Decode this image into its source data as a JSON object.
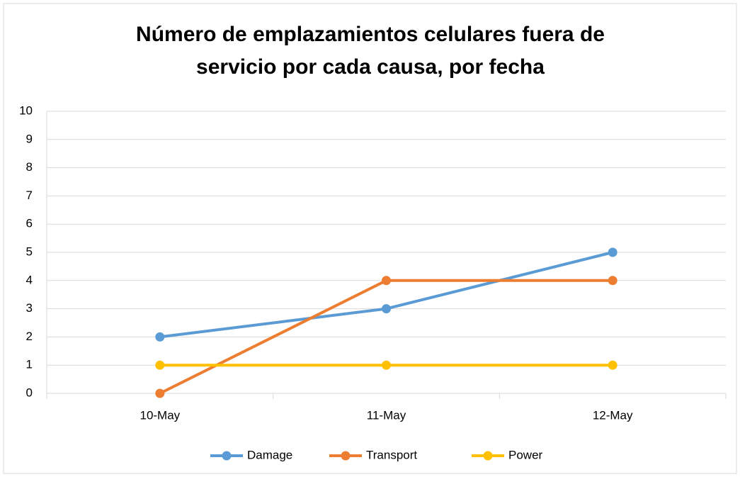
{
  "chart_data": {
    "type": "line",
    "title": "Número de emplazamientos celulares fuera de servicio por cada causa, por fecha",
    "categories": [
      "10-May",
      "11-May",
      "12-May"
    ],
    "series": [
      {
        "name": "Damage",
        "color": "#5b9bd5",
        "values": [
          2,
          3,
          5
        ]
      },
      {
        "name": "Transport",
        "color": "#ed7d31",
        "values": [
          0,
          4,
          4
        ]
      },
      {
        "name": "Power",
        "color": "#ffc000",
        "values": [
          1,
          1,
          1
        ]
      }
    ],
    "ylim": [
      0,
      10
    ],
    "yticks": [
      0,
      1,
      2,
      3,
      4,
      5,
      6,
      7,
      8,
      9,
      10
    ],
    "grid": true,
    "legend": "bottom"
  }
}
